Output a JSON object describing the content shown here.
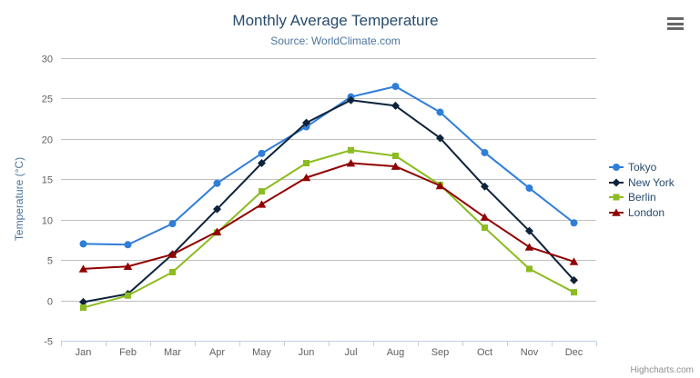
{
  "chart_data": {
    "type": "line",
    "title": "Monthly Average Temperature",
    "subtitle": "Source: WorldClimate.com",
    "xlabel": "",
    "ylabel": "Temperature (°C)",
    "categories": [
      "Jan",
      "Feb",
      "Mar",
      "Apr",
      "May",
      "Jun",
      "Jul",
      "Aug",
      "Sep",
      "Oct",
      "Nov",
      "Dec"
    ],
    "yticks": [
      30,
      25,
      20,
      15,
      10,
      5,
      0,
      -5
    ],
    "ylim": [
      -5,
      30
    ],
    "grid": true,
    "legend_position": "right",
    "series": [
      {
        "name": "Tokyo",
        "color": "#2f7ed8",
        "marker": "circle",
        "values": [
          7.0,
          6.9,
          9.5,
          14.5,
          18.2,
          21.5,
          25.2,
          26.5,
          23.3,
          18.3,
          13.9,
          9.6
        ]
      },
      {
        "name": "New York",
        "color": "#0d233a",
        "marker": "diamond",
        "values": [
          -0.2,
          0.8,
          5.7,
          11.3,
          17.0,
          22.0,
          24.8,
          24.1,
          20.1,
          14.1,
          8.6,
          2.5
        ]
      },
      {
        "name": "Berlin",
        "color": "#8bbc21",
        "marker": "square",
        "values": [
          -0.9,
          0.6,
          3.5,
          8.4,
          13.5,
          17.0,
          18.6,
          17.9,
          14.3,
          9.0,
          3.9,
          1.0
        ]
      },
      {
        "name": "London",
        "color": "#910000",
        "marker": "triangle",
        "values": [
          3.9,
          4.2,
          5.7,
          8.5,
          11.9,
          15.2,
          17.0,
          16.6,
          14.2,
          10.3,
          6.6,
          4.8
        ]
      }
    ]
  },
  "credits": {
    "text": "Highcharts.com"
  },
  "icons": {
    "context_menu": "hamburger-icon"
  },
  "colors": {
    "title": "#274b6d",
    "subtitle": "#4d759e",
    "axis_title": "#4d759e",
    "tick_label": "#606060",
    "grid_line": "#c0c0c0",
    "axis_line": "#c0d0e0",
    "tick_mark": "#c0d0e0",
    "legend_text": "#274b6d",
    "credits_text": "#909090",
    "background": "#ffffff"
  }
}
